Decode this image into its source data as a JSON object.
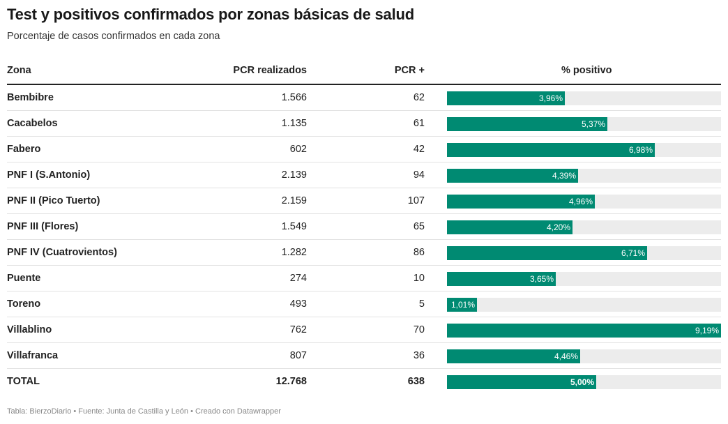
{
  "title": "Test y positivos confirmados por zonas básicas de salud",
  "subtitle": "Porcentaje de casos confirmados en cada zona",
  "columns": {
    "zona": "Zona",
    "pcr": "PCR realizados",
    "pos": "PCR +",
    "pct": "% positivo"
  },
  "footer": "Tabla: BierzoDiario • Fuente: Junta de Castilla y León • Creado con Datawrapper",
  "colors": {
    "bar": "#008a72",
    "track": "#ececec"
  },
  "chart_data": {
    "type": "table",
    "bar_max": 9.19,
    "rows": [
      {
        "zona": "Bembibre",
        "pcr": "1.566",
        "pos": "62",
        "pct": 3.96,
        "pct_label": "3,96%"
      },
      {
        "zona": "Cacabelos",
        "pcr": "1.135",
        "pos": "61",
        "pct": 5.37,
        "pct_label": "5,37%"
      },
      {
        "zona": "Fabero",
        "pcr": "602",
        "pos": "42",
        "pct": 6.98,
        "pct_label": "6,98%"
      },
      {
        "zona": "PNF I (S.Antonio)",
        "pcr": "2.139",
        "pos": "94",
        "pct": 4.39,
        "pct_label": "4,39%"
      },
      {
        "zona": "PNF II (Pico Tuerto)",
        "pcr": "2.159",
        "pos": "107",
        "pct": 4.96,
        "pct_label": "4,96%"
      },
      {
        "zona": "PNF III (Flores)",
        "pcr": "1.549",
        "pos": "65",
        "pct": 4.2,
        "pct_label": "4,20%"
      },
      {
        "zona": "PNF IV (Cuatrovientos)",
        "pcr": "1.282",
        "pos": "86",
        "pct": 6.71,
        "pct_label": "6,71%"
      },
      {
        "zona": "Puente",
        "pcr": "274",
        "pos": "10",
        "pct": 3.65,
        "pct_label": "3,65%"
      },
      {
        "zona": "Toreno",
        "pcr": "493",
        "pos": "5",
        "pct": 1.01,
        "pct_label": "1,01%"
      },
      {
        "zona": "Villablino",
        "pcr": "762",
        "pos": "70",
        "pct": 9.19,
        "pct_label": "9,19%"
      },
      {
        "zona": "Villafranca",
        "pcr": "807",
        "pos": "36",
        "pct": 4.46,
        "pct_label": "4,46%"
      },
      {
        "zona": "TOTAL",
        "pcr": "12.768",
        "pos": "638",
        "pct": 5.0,
        "pct_label": "5,00%",
        "total": true
      }
    ]
  }
}
